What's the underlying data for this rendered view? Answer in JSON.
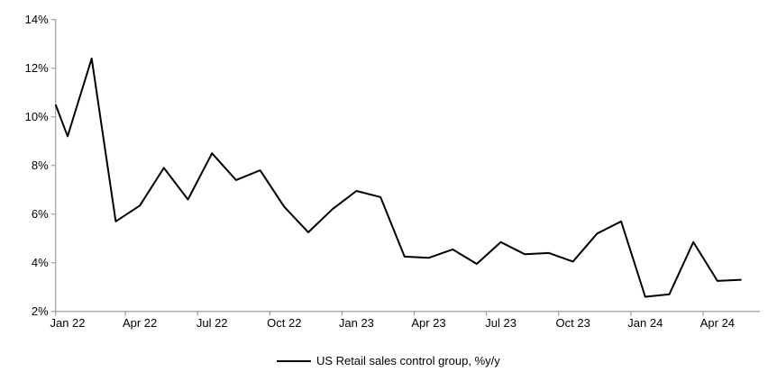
{
  "chart_data": {
    "type": "line",
    "title": "",
    "legend": "US Retail sales control group, %y/y",
    "legend_position": "bottom-center",
    "grid": false,
    "ylim": [
      2,
      14
    ],
    "y_tick_labels": [
      "14%",
      "12%",
      "10%",
      "8%",
      "6%",
      "4%",
      "2%"
    ],
    "y_tick_values": [
      14,
      12,
      10,
      8,
      6,
      4,
      2
    ],
    "x_tick_labels": [
      "Jan 22",
      "Apr 22",
      "Jul 22",
      "Oct 22",
      "Jan 23",
      "Apr 23",
      "Jul 23",
      "Oct 23",
      "Jan 24",
      "Apr 24"
    ],
    "x": [
      "Jan 22",
      "Feb 22",
      "Mar 22",
      "Apr 22",
      "May 22",
      "Jun 22",
      "Jul 22",
      "Aug 22",
      "Sep 22",
      "Oct 22",
      "Nov 22",
      "Dec 22",
      "Jan 23",
      "Feb 23",
      "Mar 23",
      "Apr 23",
      "May 23",
      "Jun 23",
      "Jul 23",
      "Aug 23",
      "Sep 23",
      "Oct 23",
      "Nov 23",
      "Dec 23",
      "Jan 24",
      "Feb 24",
      "Mar 24",
      "Apr 24",
      "May 24"
    ],
    "series": [
      {
        "name": "US Retail sales control group, %y/y",
        "values": [
          9.2,
          12.4,
          5.7,
          6.35,
          7.9,
          6.6,
          8.5,
          7.4,
          7.8,
          6.3,
          5.25,
          6.2,
          6.95,
          6.7,
          4.25,
          4.2,
          4.55,
          3.95,
          4.85,
          4.35,
          4.4,
          4.05,
          5.2,
          5.7,
          2.6,
          2.7,
          4.85,
          3.25,
          3.3
        ]
      }
    ],
    "lead_in_value_at_axis": 10.5,
    "colors": {
      "line": "#000000",
      "axis": "#a6a6a6",
      "text": "#000000",
      "background": "#ffffff"
    }
  }
}
